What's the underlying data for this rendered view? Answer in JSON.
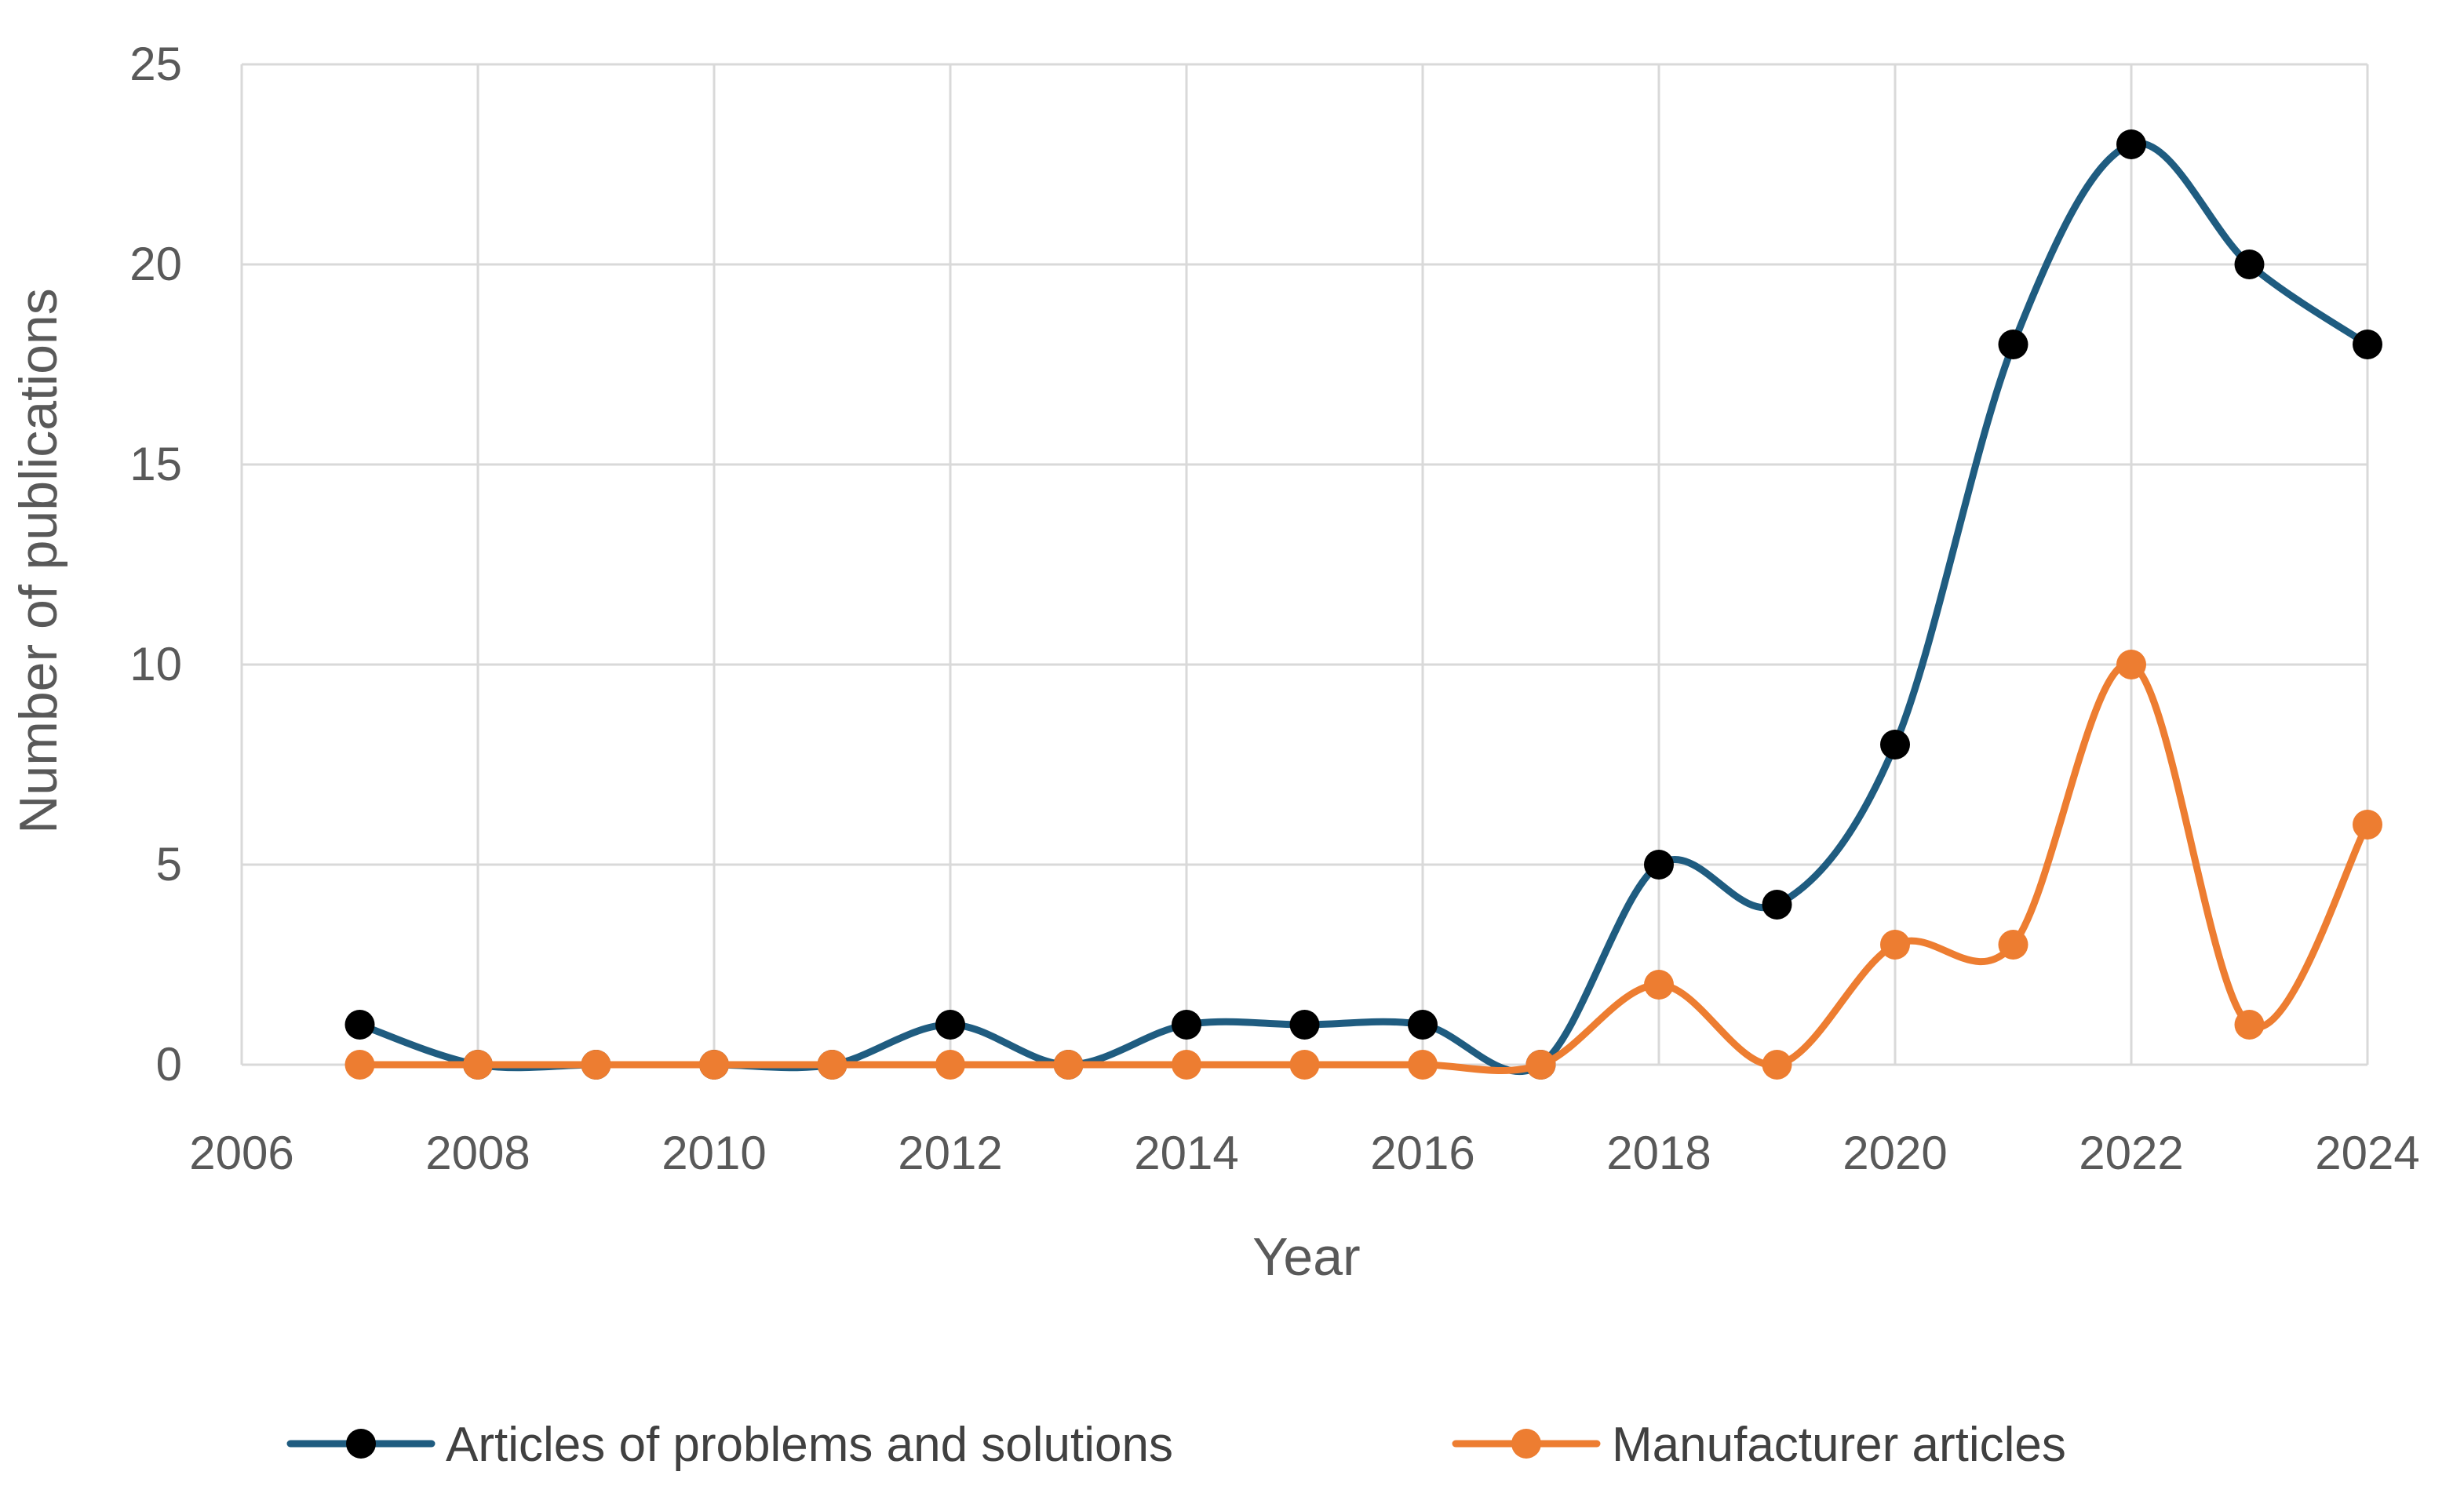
{
  "chart_data": {
    "type": "line",
    "title": "",
    "xlabel": "Year",
    "ylabel": "Number of publications",
    "xlim": [
      2006,
      2024
    ],
    "ylim": [
      0,
      25
    ],
    "xticks": [
      2006,
      2008,
      2010,
      2012,
      2014,
      2016,
      2018,
      2020,
      2022,
      2024
    ],
    "yticks": [
      0,
      5,
      10,
      15,
      20,
      25
    ],
    "grid": true,
    "legend_position": "bottom",
    "smooth": true,
    "series": [
      {
        "name": "Articles of problems and solutions",
        "line_color": "#1f5c80",
        "marker_color": "#000000",
        "x": [
          2007,
          2008,
          2009,
          2010,
          2011,
          2012,
          2013,
          2014,
          2015,
          2016,
          2017,
          2018,
          2019,
          2020,
          2021,
          2022,
          2023,
          2024
        ],
        "y": [
          1,
          0,
          0,
          0,
          0,
          1,
          0,
          1,
          1,
          1,
          0,
          5,
          4,
          8,
          18,
          23,
          20,
          18
        ]
      },
      {
        "name": "Manufacturer articles",
        "line_color": "#ed7d31",
        "marker_color": "#ed7d31",
        "x": [
          2007,
          2008,
          2009,
          2010,
          2011,
          2012,
          2013,
          2014,
          2015,
          2016,
          2017,
          2018,
          2019,
          2020,
          2021,
          2022,
          2023,
          2024
        ],
        "y": [
          0,
          0,
          0,
          0,
          0,
          0,
          0,
          0,
          0,
          0,
          0,
          2,
          0,
          3,
          3,
          10,
          1,
          6
        ]
      }
    ]
  }
}
